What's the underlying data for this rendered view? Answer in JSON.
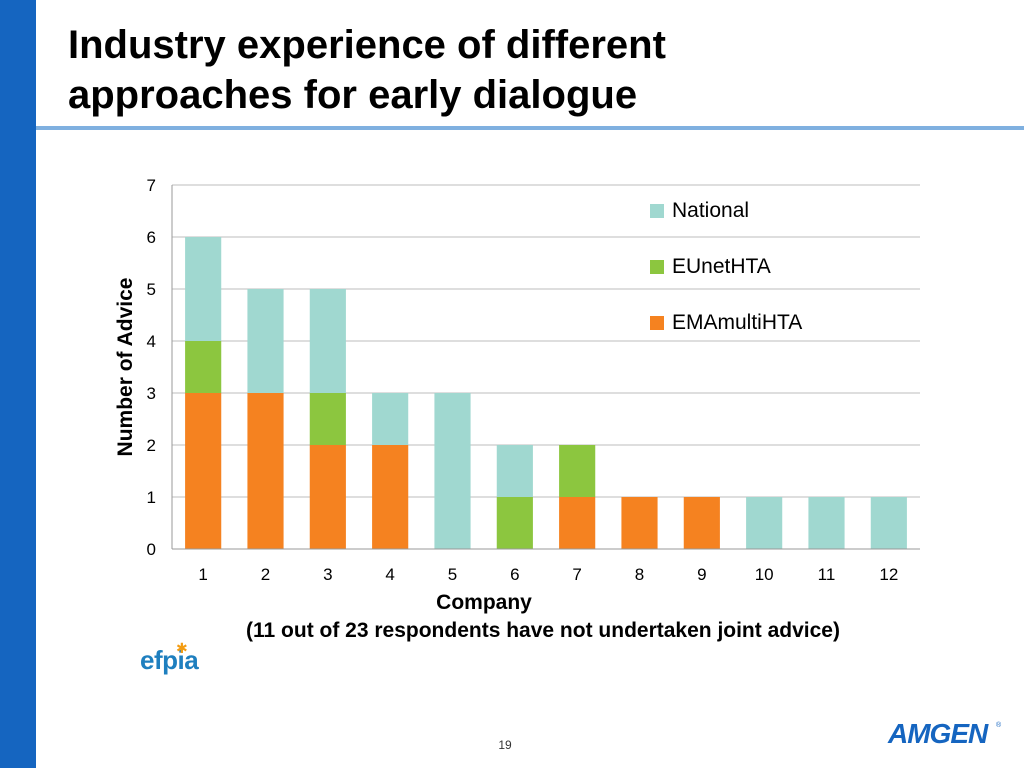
{
  "slide": {
    "title_line1": "Industry experience of different",
    "title_line2": "approaches for early dialogue",
    "page_number": "19",
    "logo_left": "efpia",
    "logo_right": "AMGEN"
  },
  "colors": {
    "left_bar": "#1565c0",
    "title_rule": "#7fb0e0",
    "national": "#a0d8d0",
    "eunethta": "#8cc63f",
    "emamultihta": "#f58220"
  },
  "chart_data": {
    "type": "bar",
    "stacked": true,
    "xlabel": "Company",
    "xlabel_note": "(11 out of 23 respondents have not undertaken joint advice)",
    "ylabel": "Number of Advice",
    "ylim": [
      0,
      7
    ],
    "yticks": [
      "0",
      "1",
      "2",
      "3",
      "4",
      "5",
      "6",
      "7"
    ],
    "categories": [
      "1",
      "2",
      "3",
      "4",
      "5",
      "6",
      "7",
      "8",
      "9",
      "10",
      "11",
      "12"
    ],
    "legend_position": "right",
    "grid": true,
    "series": [
      {
        "name": "EMAmultiHTA",
        "values": [
          3,
          3,
          2,
          2,
          0,
          0,
          1,
          1,
          1,
          0,
          0,
          0
        ]
      },
      {
        "name": "EUnetHTA",
        "values": [
          1,
          0,
          1,
          0,
          0,
          1,
          1,
          0,
          0,
          0,
          0,
          0
        ]
      },
      {
        "name": "National",
        "values": [
          2,
          2,
          2,
          1,
          3,
          1,
          0,
          0,
          0,
          1,
          1,
          1
        ]
      }
    ]
  }
}
